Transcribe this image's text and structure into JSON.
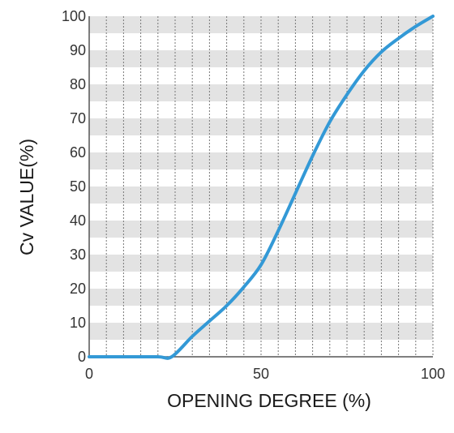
{
  "chart_data": {
    "type": "line",
    "xlabel": "OPENING DEGREE (%)",
    "ylabel": "Cv VALUE(%)",
    "xlim": [
      0,
      100
    ],
    "ylim": [
      0,
      100
    ],
    "x_ticks": [
      "0",
      "50",
      "100"
    ],
    "y_ticks": [
      "0",
      "10",
      "20",
      "30",
      "40",
      "50",
      "60",
      "70",
      "80",
      "90",
      "100"
    ],
    "grid": true,
    "series": [
      {
        "color": "#3399d6",
        "x": [
          0,
          10,
          20,
          24,
          30,
          35,
          40,
          45,
          50,
          55,
          60,
          65,
          70,
          75,
          80,
          85,
          90,
          95,
          100
        ],
        "y": [
          0,
          0,
          0,
          0,
          6,
          10.5,
          15,
          20.5,
          27,
          37,
          48,
          59,
          69,
          77,
          84,
          89.5,
          93.5,
          97,
          100
        ]
      }
    ]
  },
  "colors": {
    "band": "#e3e3e3",
    "vgrid": "#777777",
    "axis": "#555555"
  }
}
